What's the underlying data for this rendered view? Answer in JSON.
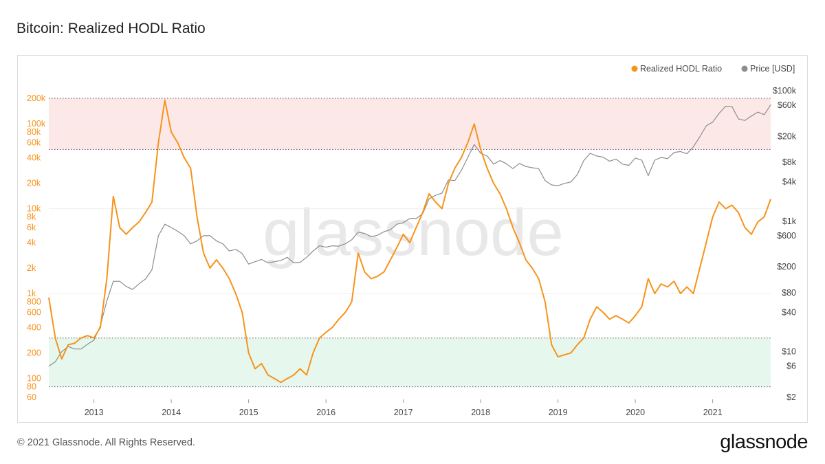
{
  "title": "Bitcoin: Realized HODL Ratio",
  "footer": {
    "copyright": "© 2021 Glassnode. All Rights Reserved.",
    "logo": "glassnode"
  },
  "watermark": "glassnode",
  "colors": {
    "rhodl": "#f7931a",
    "price": "#8c8c8c",
    "top_band": "#fde8e8",
    "bottom_band": "#e6f7ee",
    "left_axis_text": "#f7931a",
    "right_axis_text": "#444444"
  },
  "chart_data": {
    "type": "line",
    "title": "Bitcoin: Realized HODL Ratio",
    "legend_position": "top-right",
    "x_ticks": [
      "2013",
      "2014",
      "2015",
      "2016",
      "2017",
      "2018",
      "2019",
      "2020",
      "2021"
    ],
    "xlim": [
      "2012-06",
      "2021-10"
    ],
    "left_axis": {
      "scale": "log",
      "ylim": [
        60,
        200000
      ],
      "tick_values": [
        60,
        80,
        100,
        200,
        400,
        600,
        800,
        1000,
        2000,
        4000,
        6000,
        8000,
        10000,
        20000,
        40000,
        60000,
        80000,
        100000,
        200000
      ],
      "tick_labels": [
        "60",
        "80",
        "100",
        "200",
        "400",
        "600",
        "800",
        "1k",
        "2k",
        "4k",
        "6k",
        "8k",
        "10k",
        "20k",
        "40k",
        "60k",
        "80k",
        "100k",
        "200k"
      ]
    },
    "right_axis": {
      "scale": "log",
      "ylim": [
        2,
        100000
      ],
      "tick_values": [
        2,
        6,
        10,
        40,
        80,
        200,
        600,
        1000,
        4000,
        8000,
        20000,
        60000,
        100000
      ],
      "tick_labels": [
        "$2",
        "$6",
        "$10",
        "$40",
        "$80",
        "$200",
        "$600",
        "$1k",
        "$4k",
        "$8k",
        "$20k",
        "$60k",
        "$100k"
      ]
    },
    "bands": [
      {
        "name": "top",
        "from": 50000,
        "to": 200000
      },
      {
        "name": "bottom",
        "from": 80,
        "to": 300
      }
    ],
    "series": [
      {
        "name": "Realized HODL Ratio",
        "axis": "left",
        "points": [
          [
            "2012-06",
            900
          ],
          [
            "2012-07",
            300
          ],
          [
            "2012-08",
            170
          ],
          [
            "2012-09",
            250
          ],
          [
            "2012-10",
            260
          ],
          [
            "2012-11",
            300
          ],
          [
            "2012-12",
            320
          ],
          [
            "2013-01",
            300
          ],
          [
            "2013-02",
            400
          ],
          [
            "2013-03",
            1500
          ],
          [
            "2013-04",
            14000
          ],
          [
            "2013-05",
            6000
          ],
          [
            "2013-06",
            5000
          ],
          [
            "2013-07",
            6000
          ],
          [
            "2013-08",
            7000
          ],
          [
            "2013-09",
            9000
          ],
          [
            "2013-10",
            12000
          ],
          [
            "2013-11",
            60000
          ],
          [
            "2013-12",
            190000
          ],
          [
            "2014-01",
            80000
          ],
          [
            "2014-02",
            60000
          ],
          [
            "2014-03",
            40000
          ],
          [
            "2014-04",
            30000
          ],
          [
            "2014-05",
            8000
          ],
          [
            "2014-06",
            3000
          ],
          [
            "2014-07",
            2000
          ],
          [
            "2014-08",
            2500
          ],
          [
            "2014-09",
            2000
          ],
          [
            "2014-10",
            1500
          ],
          [
            "2014-11",
            1000
          ],
          [
            "2014-12",
            600
          ],
          [
            "2015-01",
            200
          ],
          [
            "2015-02",
            130
          ],
          [
            "2015-03",
            150
          ],
          [
            "2015-04",
            110
          ],
          [
            "2015-05",
            100
          ],
          [
            "2015-06",
            90
          ],
          [
            "2015-07",
            100
          ],
          [
            "2015-08",
            110
          ],
          [
            "2015-09",
            130
          ],
          [
            "2015-10",
            110
          ],
          [
            "2015-11",
            200
          ],
          [
            "2015-12",
            300
          ],
          [
            "2016-01",
            350
          ],
          [
            "2016-02",
            400
          ],
          [
            "2016-03",
            500
          ],
          [
            "2016-04",
            600
          ],
          [
            "2016-05",
            800
          ],
          [
            "2016-06",
            3000
          ],
          [
            "2016-07",
            1800
          ],
          [
            "2016-08",
            1500
          ],
          [
            "2016-09",
            1600
          ],
          [
            "2016-10",
            1800
          ],
          [
            "2016-11",
            2500
          ],
          [
            "2016-12",
            3500
          ],
          [
            "2017-01",
            5000
          ],
          [
            "2017-02",
            4000
          ],
          [
            "2017-03",
            6000
          ],
          [
            "2017-04",
            9000
          ],
          [
            "2017-05",
            15000
          ],
          [
            "2017-06",
            12000
          ],
          [
            "2017-07",
            10000
          ],
          [
            "2017-08",
            20000
          ],
          [
            "2017-09",
            30000
          ],
          [
            "2017-10",
            40000
          ],
          [
            "2017-11",
            60000
          ],
          [
            "2017-12",
            100000
          ],
          [
            "2018-01",
            50000
          ],
          [
            "2018-02",
            30000
          ],
          [
            "2018-03",
            20000
          ],
          [
            "2018-04",
            15000
          ],
          [
            "2018-05",
            10000
          ],
          [
            "2018-06",
            6000
          ],
          [
            "2018-07",
            4000
          ],
          [
            "2018-08",
            2500
          ],
          [
            "2018-09",
            2000
          ],
          [
            "2018-10",
            1500
          ],
          [
            "2018-11",
            800
          ],
          [
            "2018-12",
            250
          ],
          [
            "2019-01",
            180
          ],
          [
            "2019-02",
            190
          ],
          [
            "2019-03",
            200
          ],
          [
            "2019-04",
            250
          ],
          [
            "2019-05",
            300
          ],
          [
            "2019-06",
            500
          ],
          [
            "2019-07",
            700
          ],
          [
            "2019-08",
            600
          ],
          [
            "2019-09",
            500
          ],
          [
            "2019-10",
            550
          ],
          [
            "2019-11",
            500
          ],
          [
            "2019-12",
            450
          ],
          [
            "2020-01",
            550
          ],
          [
            "2020-02",
            700
          ],
          [
            "2020-03",
            1500
          ],
          [
            "2020-04",
            1000
          ],
          [
            "2020-05",
            1300
          ],
          [
            "2020-06",
            1200
          ],
          [
            "2020-07",
            1400
          ],
          [
            "2020-08",
            1000
          ],
          [
            "2020-09",
            1200
          ],
          [
            "2020-10",
            1000
          ],
          [
            "2020-11",
            2000
          ],
          [
            "2020-12",
            4000
          ],
          [
            "2021-01",
            8000
          ],
          [
            "2021-02",
            12000
          ],
          [
            "2021-03",
            10000
          ],
          [
            "2021-04",
            11000
          ],
          [
            "2021-05",
            9000
          ],
          [
            "2021-06",
            6000
          ],
          [
            "2021-07",
            5000
          ],
          [
            "2021-08",
            7000
          ],
          [
            "2021-09",
            8000
          ],
          [
            "2021-10",
            13000
          ]
        ]
      },
      {
        "name": "Price [USD]",
        "axis": "right",
        "points": [
          [
            "2012-06",
            6
          ],
          [
            "2012-07",
            7
          ],
          [
            "2012-08",
            10
          ],
          [
            "2012-09",
            12
          ],
          [
            "2012-10",
            11
          ],
          [
            "2012-11",
            11
          ],
          [
            "2012-12",
            13
          ],
          [
            "2013-01",
            15
          ],
          [
            "2013-02",
            25
          ],
          [
            "2013-03",
            60
          ],
          [
            "2013-04",
            120
          ],
          [
            "2013-05",
            120
          ],
          [
            "2013-06",
            100
          ],
          [
            "2013-07",
            90
          ],
          [
            "2013-08",
            110
          ],
          [
            "2013-09",
            130
          ],
          [
            "2013-10",
            180
          ],
          [
            "2013-11",
            600
          ],
          [
            "2013-12",
            900
          ],
          [
            "2014-01",
            800
          ],
          [
            "2014-02",
            700
          ],
          [
            "2014-03",
            600
          ],
          [
            "2014-04",
            450
          ],
          [
            "2014-05",
            500
          ],
          [
            "2014-06",
            600
          ],
          [
            "2014-07",
            600
          ],
          [
            "2014-08",
            500
          ],
          [
            "2014-09",
            450
          ],
          [
            "2014-10",
            350
          ],
          [
            "2014-11",
            370
          ],
          [
            "2014-12",
            320
          ],
          [
            "2015-01",
            220
          ],
          [
            "2015-02",
            240
          ],
          [
            "2015-03",
            260
          ],
          [
            "2015-04",
            230
          ],
          [
            "2015-05",
            240
          ],
          [
            "2015-06",
            250
          ],
          [
            "2015-07",
            280
          ],
          [
            "2015-08",
            230
          ],
          [
            "2015-09",
            235
          ],
          [
            "2015-10",
            280
          ],
          [
            "2015-11",
            350
          ],
          [
            "2015-12",
            420
          ],
          [
            "2016-01",
            400
          ],
          [
            "2016-02",
            420
          ],
          [
            "2016-03",
            415
          ],
          [
            "2016-04",
            450
          ],
          [
            "2016-05",
            520
          ],
          [
            "2016-06",
            680
          ],
          [
            "2016-07",
            650
          ],
          [
            "2016-08",
            580
          ],
          [
            "2016-09",
            610
          ],
          [
            "2016-10",
            690
          ],
          [
            "2016-11",
            740
          ],
          [
            "2016-12",
            900
          ],
          [
            "2017-01",
            950
          ],
          [
            "2017-02",
            1100
          ],
          [
            "2017-03",
            1100
          ],
          [
            "2017-04",
            1300
          ],
          [
            "2017-05",
            2200
          ],
          [
            "2017-06",
            2500
          ],
          [
            "2017-07",
            2700
          ],
          [
            "2017-08",
            4300
          ],
          [
            "2017-09",
            4200
          ],
          [
            "2017-10",
            6000
          ],
          [
            "2017-11",
            9500
          ],
          [
            "2017-12",
            15000
          ],
          [
            "2018-01",
            11000
          ],
          [
            "2018-02",
            10000
          ],
          [
            "2018-03",
            7500
          ],
          [
            "2018-04",
            8500
          ],
          [
            "2018-05",
            7600
          ],
          [
            "2018-06",
            6400
          ],
          [
            "2018-07",
            7700
          ],
          [
            "2018-08",
            6900
          ],
          [
            "2018-09",
            6600
          ],
          [
            "2018-10",
            6400
          ],
          [
            "2018-11",
            4200
          ],
          [
            "2018-12",
            3600
          ],
          [
            "2019-01",
            3500
          ],
          [
            "2019-02",
            3800
          ],
          [
            "2019-03",
            4000
          ],
          [
            "2019-04",
            5200
          ],
          [
            "2019-05",
            8500
          ],
          [
            "2019-06",
            11000
          ],
          [
            "2019-07",
            10000
          ],
          [
            "2019-08",
            9600
          ],
          [
            "2019-09",
            8300
          ],
          [
            "2019-10",
            9000
          ],
          [
            "2019-11",
            7500
          ],
          [
            "2019-12",
            7200
          ],
          [
            "2020-01",
            9300
          ],
          [
            "2020-02",
            8600
          ],
          [
            "2020-03",
            5000
          ],
          [
            "2020-04",
            8600
          ],
          [
            "2020-05",
            9500
          ],
          [
            "2020-06",
            9100
          ],
          [
            "2020-07",
            11300
          ],
          [
            "2020-08",
            11700
          ],
          [
            "2020-09",
            10800
          ],
          [
            "2020-10",
            13800
          ],
          [
            "2020-11",
            19700
          ],
          [
            "2020-12",
            29000
          ],
          [
            "2021-01",
            33000
          ],
          [
            "2021-02",
            45000
          ],
          [
            "2021-03",
            58000
          ],
          [
            "2021-04",
            57000
          ],
          [
            "2021-05",
            37000
          ],
          [
            "2021-06",
            35000
          ],
          [
            "2021-07",
            41000
          ],
          [
            "2021-08",
            47000
          ],
          [
            "2021-09",
            43000
          ],
          [
            "2021-10",
            61000
          ]
        ]
      }
    ]
  }
}
